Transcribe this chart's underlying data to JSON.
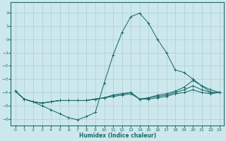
{
  "xlabel": "Humidex (Indice chaleur)",
  "bg_color": "#cde8ec",
  "line_color": "#1a6b6b",
  "grid_color": "#aacdd4",
  "xlim": [
    -0.5,
    23.5
  ],
  "ylim": [
    -6.5,
    2.8
  ],
  "xticks": [
    0,
    1,
    2,
    3,
    4,
    5,
    6,
    7,
    8,
    9,
    10,
    11,
    12,
    13,
    14,
    15,
    16,
    17,
    18,
    19,
    20,
    21,
    22,
    23
  ],
  "yticks": [
    -6,
    -5,
    -4,
    -3,
    -2,
    -1,
    0,
    1,
    2
  ],
  "line1_x": [
    0,
    1,
    2,
    3,
    4,
    5,
    6,
    7,
    8,
    9,
    10,
    11,
    12,
    13,
    14,
    15,
    16,
    17,
    18,
    19,
    20,
    21,
    22,
    23
  ],
  "line1_y": [
    -3.9,
    -4.5,
    -4.7,
    -5.0,
    -5.3,
    -5.6,
    -5.9,
    -6.05,
    -5.8,
    -5.5,
    -3.3,
    -1.2,
    0.5,
    1.7,
    1.95,
    1.2,
    0.0,
    -1.0,
    -2.3,
    -2.5,
    -3.0,
    -3.5,
    -4.0,
    -4.0
  ],
  "line2_x": [
    0,
    1,
    2,
    3,
    4,
    5,
    6,
    7,
    8,
    9,
    10,
    11,
    12,
    13,
    14,
    15,
    16,
    17,
    18,
    19,
    20,
    21,
    22,
    23
  ],
  "line2_y": [
    -3.9,
    -4.5,
    -4.7,
    -4.8,
    -4.7,
    -4.6,
    -4.6,
    -4.6,
    -4.6,
    -4.5,
    -4.4,
    -4.2,
    -4.1,
    -4.0,
    -4.5,
    -4.4,
    -4.2,
    -4.1,
    -3.9,
    -3.6,
    -3.1,
    -3.5,
    -3.8,
    -4.0
  ],
  "line3_x": [
    0,
    1,
    2,
    3,
    4,
    5,
    6,
    7,
    8,
    9,
    10,
    11,
    12,
    13,
    14,
    15,
    16,
    17,
    18,
    19,
    20,
    21,
    22,
    23
  ],
  "line3_y": [
    -3.9,
    -4.5,
    -4.7,
    -4.8,
    -4.7,
    -4.6,
    -4.6,
    -4.6,
    -4.6,
    -4.5,
    -4.4,
    -4.2,
    -4.1,
    -4.0,
    -4.5,
    -4.4,
    -4.3,
    -4.2,
    -4.0,
    -3.8,
    -3.5,
    -3.8,
    -4.0,
    -4.0
  ],
  "line4_x": [
    0,
    1,
    2,
    3,
    4,
    5,
    6,
    7,
    8,
    9,
    10,
    11,
    12,
    13,
    14,
    15,
    16,
    17,
    18,
    19,
    20,
    21,
    22,
    23
  ],
  "line4_y": [
    -3.9,
    -4.5,
    -4.7,
    -4.8,
    -4.7,
    -4.6,
    -4.6,
    -4.6,
    -4.6,
    -4.5,
    -4.4,
    -4.3,
    -4.2,
    -4.1,
    -4.5,
    -4.5,
    -4.4,
    -4.3,
    -4.1,
    -4.0,
    -3.8,
    -4.0,
    -4.1,
    -4.0
  ]
}
